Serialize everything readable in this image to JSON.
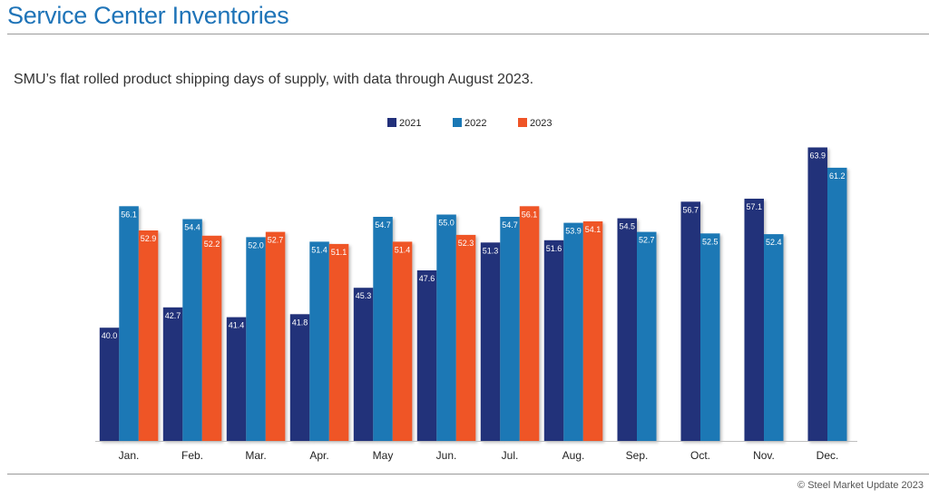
{
  "header": {
    "title": "Service Center Inventories"
  },
  "footer": {
    "copyright": "© Steel Market Update 2023"
  },
  "colors": {
    "s2021": "#22307a",
    "s2022": "#1a78b5",
    "s2023": "#ef5427",
    "title": "#1f74b8"
  },
  "chart_data": {
    "type": "bar",
    "title": "Service Center Inventories",
    "subtitle": "SMU’s flat rolled product shipping days of supply, with data through August 2023.",
    "xlabel": "",
    "ylabel": "",
    "ylim": [
      25,
      66
    ],
    "grid": false,
    "legend_position": "top-center",
    "categories": [
      "Jan.",
      "Feb.",
      "Mar.",
      "Apr.",
      "May",
      "Jun.",
      "Jul.",
      "Aug.",
      "Sep.",
      "Oct.",
      "Nov.",
      "Dec."
    ],
    "series": [
      {
        "name": "2021",
        "color": "#22307a",
        "values": [
          40.0,
          42.7,
          41.4,
          41.8,
          45.3,
          47.6,
          51.3,
          51.6,
          54.5,
          56.7,
          57.1,
          63.9
        ]
      },
      {
        "name": "2022",
        "color": "#1a78b5",
        "values": [
          56.1,
          54.4,
          52.0,
          51.4,
          54.7,
          55.0,
          54.7,
          53.9,
          52.7,
          52.5,
          52.4,
          61.2
        ]
      },
      {
        "name": "2023",
        "color": "#ef5427",
        "values": [
          52.9,
          52.2,
          52.7,
          51.1,
          51.4,
          52.3,
          56.1,
          54.1,
          null,
          null,
          null,
          null
        ]
      }
    ]
  }
}
